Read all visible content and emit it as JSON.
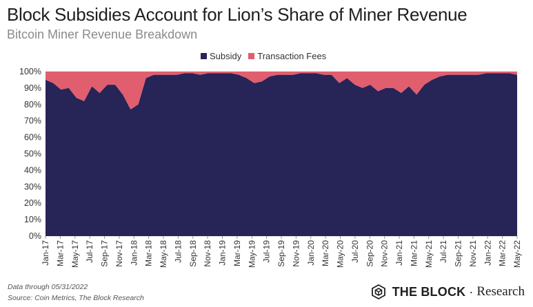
{
  "header": {
    "title": "Block Subsidies Account for Lion’s Share of Miner Revenue",
    "subtitle": "Bitcoin Miner Revenue Breakdown"
  },
  "colors": {
    "subsidy": "#272457",
    "fees": "#e15e6e",
    "grid": "#d9d9d9",
    "axis_text": "#333333"
  },
  "chart_data": {
    "type": "area",
    "stacked": true,
    "percent": true,
    "title": "Bitcoin Miner Revenue Breakdown",
    "xlabel": "",
    "ylabel": "",
    "ylim": [
      0,
      100
    ],
    "yticks": [
      "0%",
      "10%",
      "20%",
      "30%",
      "40%",
      "50%",
      "60%",
      "70%",
      "80%",
      "90%",
      "100%"
    ],
    "x_tick_labels": [
      "Jan-17",
      "Mar-17",
      "May-17",
      "Jul-17",
      "Sep-17",
      "Nov-17",
      "Jan-18",
      "Mar-18",
      "May-18",
      "Jul-18",
      "Sep-18",
      "Nov-18",
      "Jan-19",
      "Mar-19",
      "May-19",
      "Jul-19",
      "Sep-19",
      "Nov-19",
      "Jan-20",
      "Mar-20",
      "May-20",
      "Jul-20",
      "Sep-20",
      "Nov-20",
      "Jan-21",
      "Mar-21",
      "May-21",
      "Jul-21",
      "Sep-21",
      "Nov-21",
      "Jan-22",
      "Mar-22",
      "May-22"
    ],
    "legend": [
      "Subsidy",
      "Transaction Fees"
    ],
    "legend_position": "top-center",
    "series": [
      {
        "name": "Subsidy",
        "values": [
          95,
          93,
          89,
          90,
          84,
          82,
          91,
          87,
          92,
          92,
          86,
          77,
          80,
          96,
          98,
          98,
          98,
          98,
          99,
          99,
          98,
          99,
          99,
          99,
          99,
          98,
          96,
          93,
          94,
          97,
          98,
          98,
          98,
          99,
          99,
          99,
          98,
          98,
          93,
          96,
          92,
          90,
          92,
          88,
          90,
          90,
          87,
          91,
          86,
          92,
          95,
          97,
          98,
          98,
          98,
          98,
          98,
          99,
          99,
          99,
          99,
          98
        ]
      },
      {
        "name": "Transaction Fees",
        "values": [
          5,
          7,
          11,
          10,
          16,
          18,
          9,
          13,
          8,
          8,
          14,
          23,
          20,
          4,
          2,
          2,
          2,
          2,
          1,
          1,
          2,
          1,
          1,
          1,
          1,
          2,
          4,
          7,
          6,
          3,
          2,
          2,
          2,
          1,
          1,
          1,
          2,
          2,
          7,
          4,
          8,
          10,
          8,
          12,
          10,
          10,
          13,
          9,
          14,
          8,
          5,
          3,
          2,
          2,
          2,
          2,
          2,
          1,
          1,
          1,
          1,
          2
        ]
      }
    ]
  },
  "footer": {
    "note_date": "Data through 05/31/2022",
    "note_source": "Source: Coin Metrics, The Block Research",
    "logo_brand": "THE BLOCK",
    "logo_separator": "·",
    "logo_suffix": "Research"
  }
}
